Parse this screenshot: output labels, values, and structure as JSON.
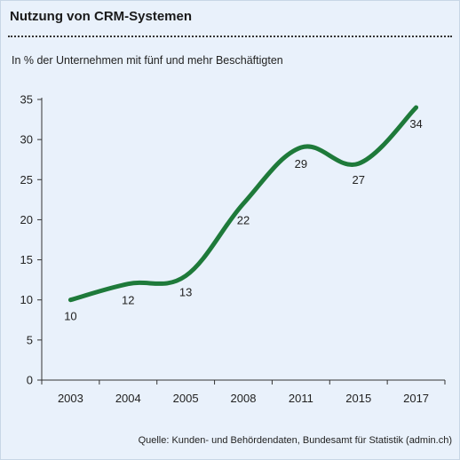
{
  "title": "Nutzung von CRM-Systemen",
  "subtitle": "In % der Unternehmen mit fünf und mehr Beschäftigten",
  "source": "Quelle: Kunden- und Behördendaten, Bundesamt für Statistik (admin.ch)",
  "colors": {
    "line": "#1e7a3a",
    "background": "#e9f1fb",
    "grid": "#b0c4d8"
  },
  "chart_data": {
    "type": "line",
    "title": "Nutzung von CRM-Systemen",
    "subtitle": "In % der Unternehmen mit fünf und mehr Beschäftigten",
    "xlabel": "",
    "ylabel": "",
    "categories": [
      "2003",
      "2004",
      "2005",
      "2008",
      "2011",
      "2015",
      "2017"
    ],
    "values": [
      10,
      12,
      13,
      22,
      29,
      27,
      34
    ],
    "data_labels": [
      "10",
      "12",
      "13",
      "22",
      "29",
      "27",
      "34"
    ],
    "ylim": [
      0,
      35
    ],
    "yticks": [
      0,
      5,
      10,
      15,
      20,
      25,
      30,
      35
    ],
    "grid": false,
    "legend": "none"
  }
}
